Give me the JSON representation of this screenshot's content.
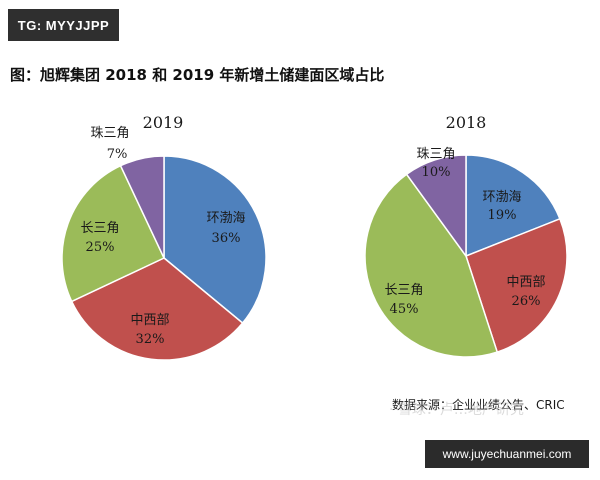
{
  "watermark_top": "TG: MYYJJPP",
  "title": "图：旭辉集团 2018 和 2019 年新增土储建面区域占比",
  "source": "数据来源：企业业绩公告、CRIC",
  "wechat_overlay": "· 雪球：卢…地产研究",
  "url_badge": "www.juyechuanmei.com",
  "colors": {
    "环渤海": "#4f81bd",
    "中西部": "#c0504d",
    "长三角": "#9bbb59",
    "珠三角": "#8064a2"
  },
  "chart_data": [
    {
      "type": "pie",
      "title": "2019",
      "slices": [
        {
          "label": "环渤海",
          "value": 36,
          "display": "36%"
        },
        {
          "label": "中西部",
          "value": 32,
          "display": "32%"
        },
        {
          "label": "长三角",
          "value": 25,
          "display": "25%"
        },
        {
          "label": "珠三角",
          "value": 7,
          "display": "7%"
        }
      ]
    },
    {
      "type": "pie",
      "title": "2018",
      "slices": [
        {
          "label": "环渤海",
          "value": 19,
          "display": "19%"
        },
        {
          "label": "中西部",
          "value": 26,
          "display": "26%"
        },
        {
          "label": "长三角",
          "value": 45,
          "display": "45%"
        },
        {
          "label": "珠三角",
          "value": 10,
          "display": "10%"
        }
      ]
    }
  ]
}
